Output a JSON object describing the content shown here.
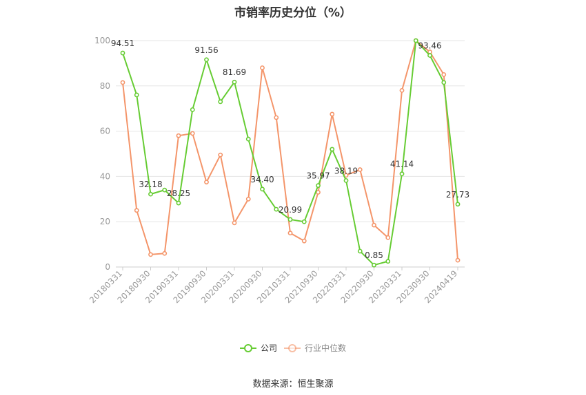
{
  "chart_data": {
    "type": "line",
    "title": "市销率历史分位（%）",
    "source": "数据来源：恒生聚源",
    "ylim": [
      0,
      100
    ],
    "yticks": [
      0,
      20,
      40,
      60,
      80,
      100
    ],
    "grid": true,
    "legend_position": "bottom",
    "x_tick_labels": [
      "20180331",
      "20180930",
      "20190331",
      "20190930",
      "20200331",
      "20200930",
      "20210331",
      "20210930",
      "20220331",
      "20220930",
      "20230331",
      "20230930",
      "20240419"
    ],
    "series": [
      {
        "name": "公司",
        "color": "#66cc33",
        "values": [
          94.51,
          76,
          32.18,
          34,
          28.25,
          69.5,
          91.56,
          73,
          81.69,
          56.5,
          34.4,
          25.5,
          20.99,
          20,
          35.97,
          52,
          38.19,
          7,
          0.85,
          2.5,
          41.14,
          100,
          93.46,
          81.5,
          27.73
        ],
        "labels": [
          "94.51",
          "",
          "32.18",
          "",
          "28.25",
          "",
          "91.56",
          "",
          "81.69",
          "",
          "34.40",
          "",
          "20.99",
          "",
          "35.97",
          "",
          "38.19",
          "",
          "0.85",
          "",
          "41.14",
          "",
          "93.46",
          "",
          "27.73"
        ]
      },
      {
        "name": "行业中位数",
        "color": "#f4956a",
        "values": [
          81.5,
          25,
          5.5,
          6,
          58,
          59,
          37.5,
          49.5,
          19.5,
          30,
          88,
          66,
          15,
          11.5,
          33,
          67.5,
          40.5,
          43,
          18.5,
          13,
          78,
          100,
          95,
          85,
          3
        ]
      }
    ]
  }
}
